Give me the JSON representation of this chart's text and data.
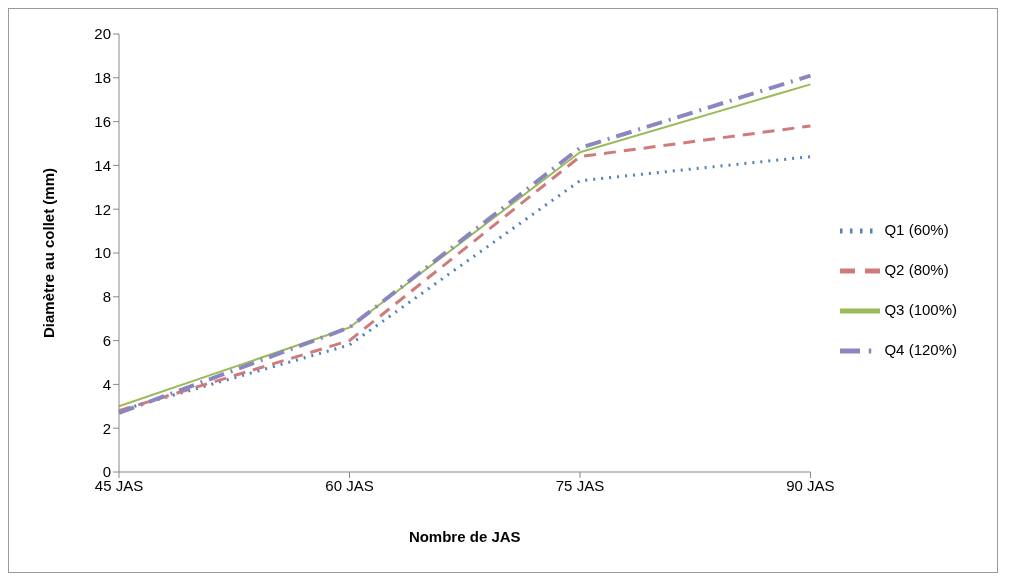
{
  "chart_data": {
    "type": "line",
    "xlabel": "Nombre de JAS",
    "ylabel": "Diamètre au collet (mm)",
    "categories": [
      "45 JAS",
      "60 JAS",
      "75 JAS",
      "90 JAS"
    ],
    "series": [
      {
        "name": "Q1 (60%)",
        "color": "#4f81bd",
        "line_style": "dotted",
        "values": [
          2.8,
          5.8,
          13.3,
          14.4
        ]
      },
      {
        "name": "Q2 (80%)",
        "color": "#d07b7b",
        "line_style": "dashed",
        "values": [
          2.8,
          6.0,
          14.4,
          15.8
        ]
      },
      {
        "name": "Q3 (100%)",
        "color": "#9bbb59",
        "line_style": "solid",
        "values": [
          3.0,
          6.6,
          14.6,
          17.7
        ]
      },
      {
        "name": "Q4 (120%)",
        "color": "#8a86c0",
        "line_style": "dashdot",
        "values": [
          2.7,
          6.6,
          14.8,
          18.1
        ]
      }
    ],
    "ylim": [
      0,
      20
    ],
    "yticks": [
      0,
      2,
      4,
      6,
      8,
      10,
      12,
      14,
      16,
      18,
      20
    ],
    "grid": false,
    "legend": "right",
    "marker": "none"
  }
}
